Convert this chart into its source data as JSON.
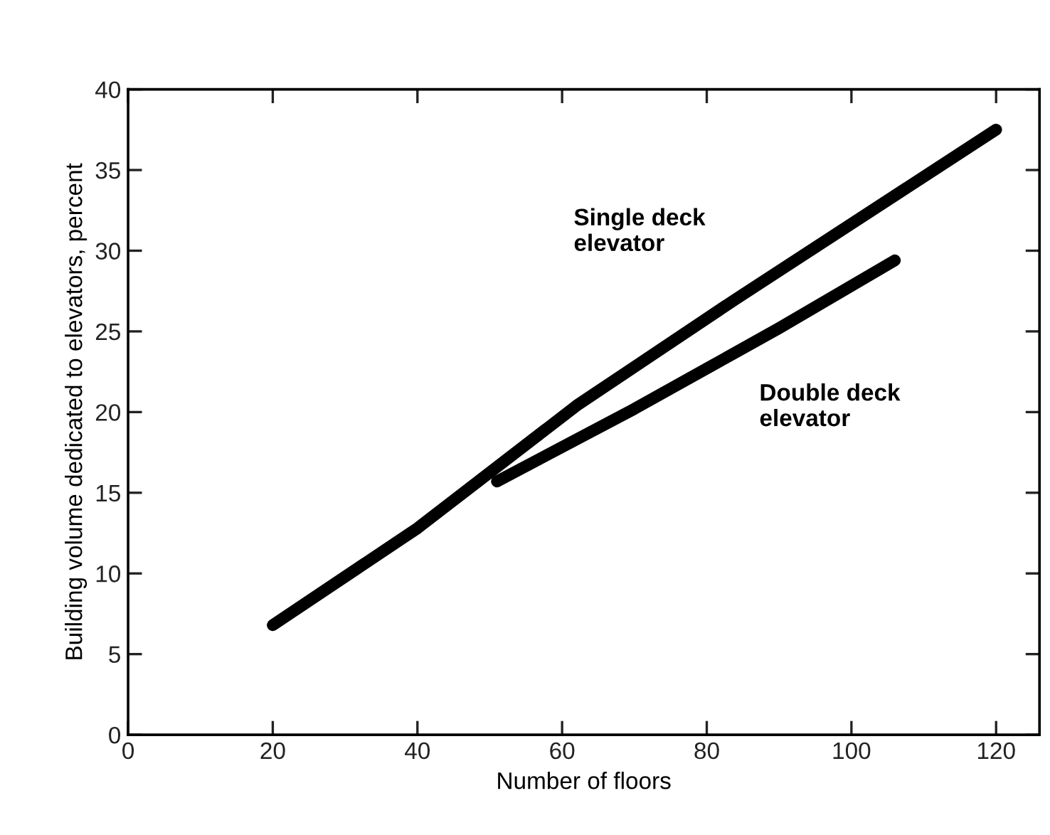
{
  "chart_data": {
    "type": "line",
    "xlabel": "Number of floors",
    "ylabel": "Building volume dedicated to elevators, percent",
    "xlim": [
      0,
      126
    ],
    "ylim": [
      0,
      40
    ],
    "xticks": [
      0,
      20,
      40,
      60,
      80,
      100,
      120
    ],
    "yticks": [
      0,
      5,
      10,
      15,
      20,
      25,
      30,
      35,
      40
    ],
    "grid": false,
    "legend": false,
    "marker": "none",
    "line_style": "solid",
    "series": [
      {
        "name": "Single deck\nelevator",
        "color": "#000000",
        "x": [
          20,
          40,
          62,
          84,
          120
        ],
        "values": [
          6.8,
          12.8,
          20.4,
          27.0,
          37.5
        ]
      },
      {
        "name": "Double deck\nelevator",
        "color": "#000000",
        "x": [
          51,
          70,
          90,
          106
        ],
        "values": [
          15.7,
          20.2,
          25.2,
          29.4
        ]
      }
    ]
  }
}
